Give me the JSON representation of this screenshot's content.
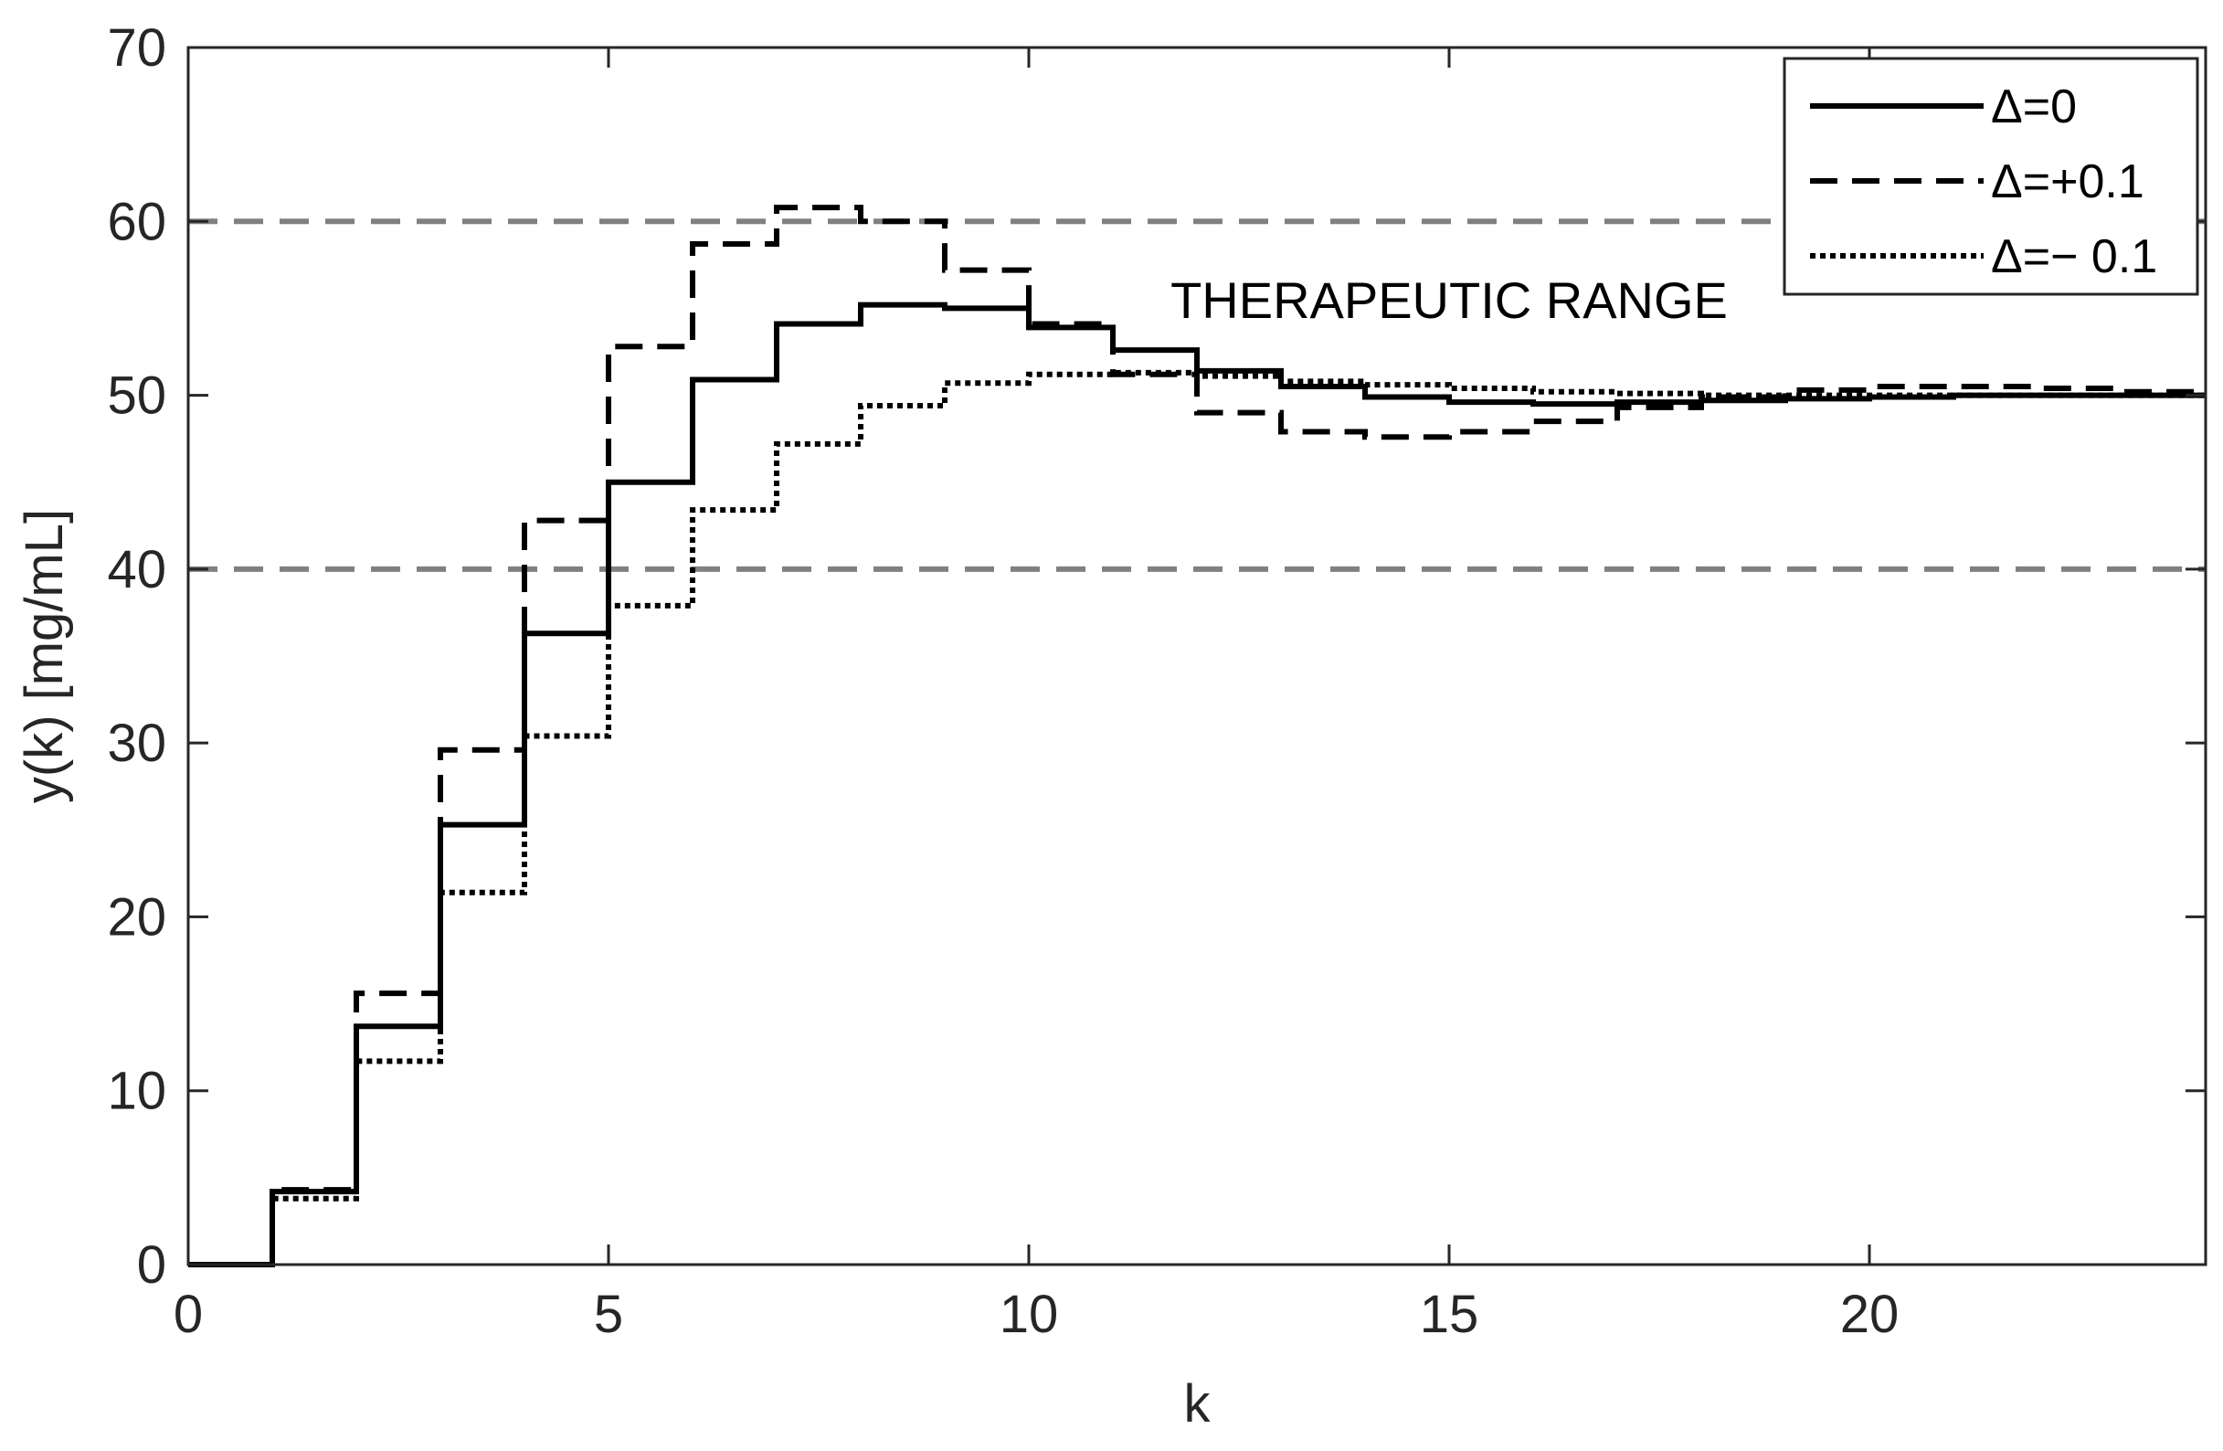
{
  "chart_data": {
    "type": "line",
    "step": true,
    "xlabel": "k",
    "ylabel": "y(k) [mg/mL]",
    "xlim": [
      0,
      24
    ],
    "ylim": [
      0,
      70
    ],
    "xticks": [
      0,
      5,
      10,
      15,
      20
    ],
    "yticks": [
      0,
      10,
      20,
      30,
      40,
      50,
      60,
      70
    ],
    "grid": false,
    "legend_position": "top-right",
    "reference_lines": [
      {
        "y": 60,
        "style": "dashed",
        "color": "#808080"
      },
      {
        "y": 40,
        "style": "dashed",
        "color": "#808080"
      }
    ],
    "annotations": [
      {
        "text": "THERAPEUTIC RANGE",
        "x": 15,
        "y": 55.5
      }
    ],
    "x": [
      0,
      1,
      2,
      3,
      4,
      5,
      6,
      7,
      8,
      9,
      10,
      11,
      12,
      13,
      14,
      15,
      16,
      17,
      18,
      19,
      20,
      21,
      22,
      23
    ],
    "series": [
      {
        "name": "Δ=0",
        "style": "solid",
        "color": "#000000",
        "values": [
          0,
          4.2,
          13.7,
          25.3,
          36.3,
          45.0,
          50.9,
          54.1,
          55.2,
          55.0,
          53.9,
          52.6,
          51.4,
          50.5,
          49.9,
          49.6,
          49.5,
          49.6,
          49.7,
          49.8,
          49.9,
          50.0,
          50.0,
          50.0
        ]
      },
      {
        "name": "Δ=+0.1",
        "style": "dashed",
        "color": "#000000",
        "values": [
          0,
          4.3,
          15.6,
          29.6,
          42.8,
          52.8,
          58.7,
          60.8,
          60.0,
          57.2,
          54.1,
          51.2,
          49.0,
          47.9,
          47.6,
          47.9,
          48.5,
          49.3,
          49.9,
          50.3,
          50.5,
          50.5,
          50.4,
          50.2
        ]
      },
      {
        "name": "Δ=− 0.1",
        "style": "dotted",
        "color": "#000000",
        "values": [
          0,
          3.8,
          11.7,
          21.4,
          30.4,
          37.9,
          43.4,
          47.2,
          49.4,
          50.7,
          51.2,
          51.3,
          51.1,
          50.8,
          50.6,
          50.4,
          50.2,
          50.1,
          50.0,
          50.0,
          50.0,
          50.0,
          50.0,
          50.0
        ]
      }
    ]
  }
}
